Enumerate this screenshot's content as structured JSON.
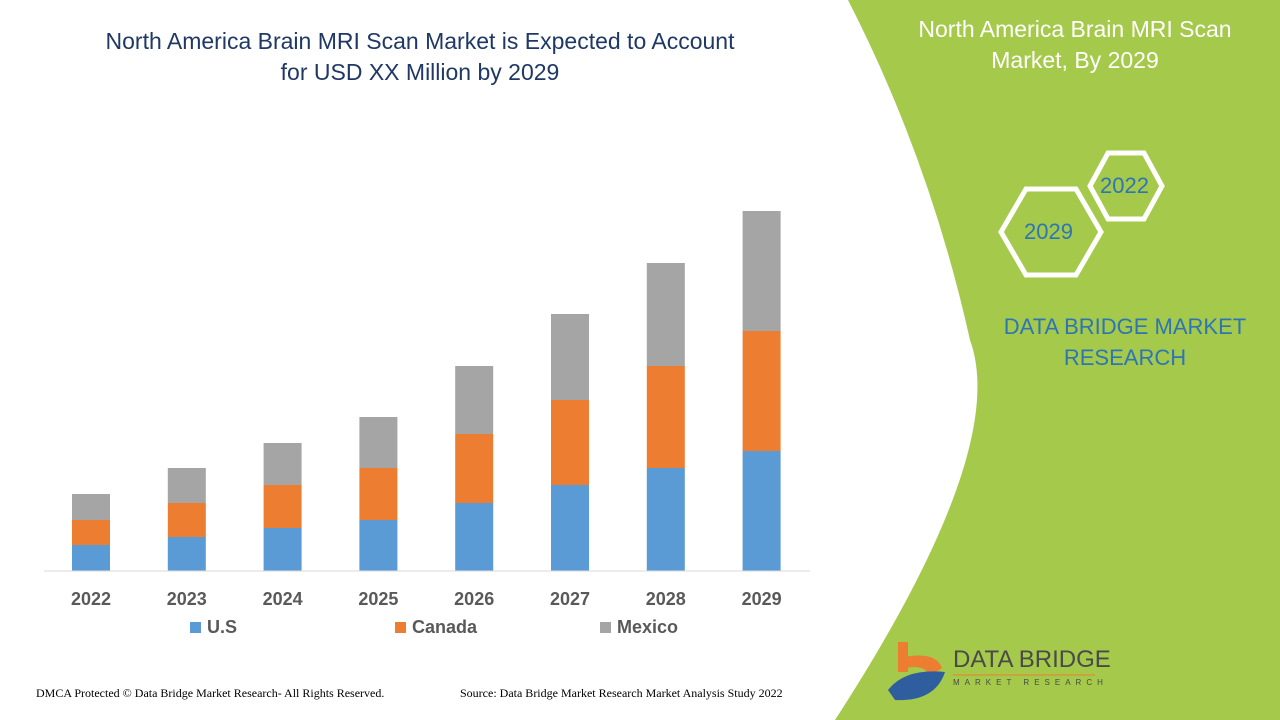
{
  "title": "North America Brain MRI Scan Market is Expected to Account for USD XX Million by 2029",
  "panel": {
    "title": "North America Brain MRI Scan Market, By 2029",
    "hex_top": "2022",
    "hex_bottom": "2029",
    "brand": "DATA BRIDGE MARKET RESEARCH",
    "logo_text": "DATA BRIDGE",
    "logo_sub": "MARKET RESEARCH",
    "color": "#a5c94a"
  },
  "footer": {
    "left": "DMCA Protected © Data Bridge Market Research- All Rights Reserved.",
    "right": "Source: Data Bridge Market Research Market Analysis Study 2022"
  },
  "chart_data": {
    "type": "bar",
    "stacked": true,
    "title": "North America Brain MRI Scan Market is Expected to Account for USD XX Million by 2029",
    "categories": [
      "2022",
      "2023",
      "2024",
      "2025",
      "2026",
      "2027",
      "2028",
      "2029"
    ],
    "series": [
      {
        "name": "U.S",
        "color": "#5b9bd5",
        "values": [
          26,
          34,
          43,
          51,
          68,
          86,
          103,
          120
        ]
      },
      {
        "name": "Canada",
        "color": "#ed7d31",
        "values": [
          25,
          34,
          43,
          52,
          69,
          85,
          102,
          120
        ]
      },
      {
        "name": "Mexico",
        "color": "#a5a5a5",
        "values": [
          26,
          35,
          42,
          51,
          68,
          86,
          103,
          120
        ]
      }
    ],
    "y_axis_shown": false,
    "grid": false,
    "legend": "bottom"
  }
}
